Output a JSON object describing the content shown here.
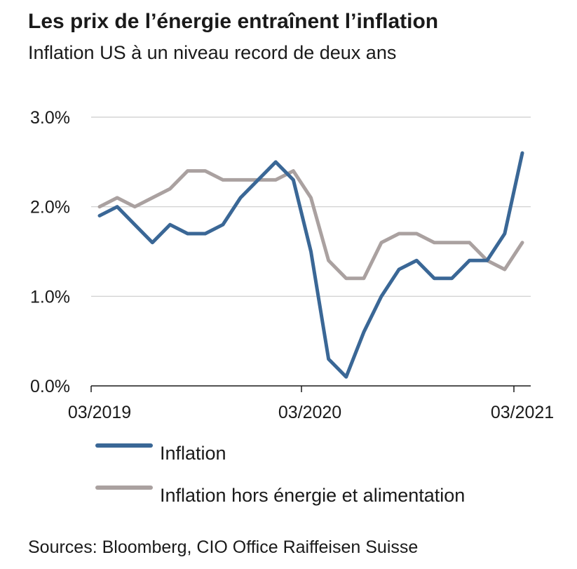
{
  "title": "Les prix de l’énergie entraînent l’inflation",
  "subtitle": "Inflation US à un niveau record de deux ans",
  "source": "Sources: Bloomberg, CIO Office Raiffeisen Suisse",
  "colors": {
    "inflation": "#3a6796",
    "core_inflation": "#aaa1a0",
    "grid": "#cccccc",
    "axis": "#1a1a1a"
  },
  "chart_data": {
    "type": "line",
    "title": "Les prix de l’énergie entraînent l’inflation",
    "subtitle": "Inflation US à un niveau record de deux ans",
    "xlabel": "",
    "ylabel": "",
    "x": [
      "2019-03",
      "2019-04",
      "2019-05",
      "2019-06",
      "2019-07",
      "2019-08",
      "2019-09",
      "2019-10",
      "2019-11",
      "2019-12",
      "2020-01",
      "2020-02",
      "2020-03",
      "2020-04",
      "2020-05",
      "2020-06",
      "2020-07",
      "2020-08",
      "2020-09",
      "2020-10",
      "2020-11",
      "2020-12",
      "2021-01",
      "2021-02",
      "2021-03"
    ],
    "x_tick_labels": [
      "03/2019",
      "03/2020",
      "03/2021"
    ],
    "y_tick_labels": [
      "0.0%",
      "1.0%",
      "2.0%",
      "3.0%"
    ],
    "y_ticks": [
      0,
      1,
      2,
      3
    ],
    "ylim": [
      0,
      3
    ],
    "grid": "horizontal",
    "legend_position": "bottom",
    "series": [
      {
        "name": "Inflation",
        "values": [
          1.9,
          2.0,
          1.8,
          1.6,
          1.8,
          1.7,
          1.7,
          1.8,
          2.1,
          2.3,
          2.5,
          2.3,
          1.5,
          0.3,
          0.1,
          0.6,
          1.0,
          1.3,
          1.4,
          1.2,
          1.2,
          1.4,
          1.4,
          1.7,
          2.6
        ]
      },
      {
        "name": "Inflation hors énergie et alimentation",
        "values": [
          2.0,
          2.1,
          2.0,
          2.1,
          2.2,
          2.4,
          2.4,
          2.3,
          2.3,
          2.3,
          2.3,
          2.4,
          2.1,
          1.4,
          1.2,
          1.2,
          1.6,
          1.7,
          1.7,
          1.6,
          1.6,
          1.6,
          1.4,
          1.3,
          1.6
        ]
      }
    ]
  }
}
